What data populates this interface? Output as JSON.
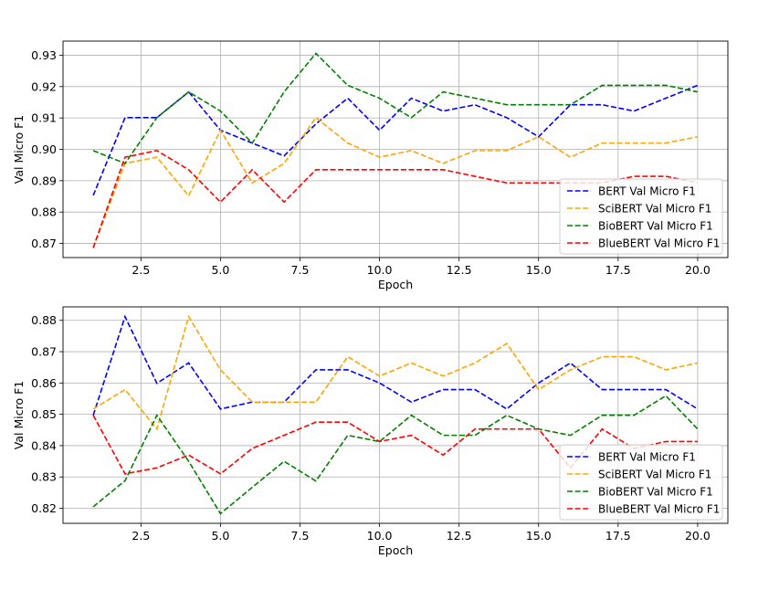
{
  "chart_data": [
    {
      "type": "line",
      "title": "",
      "xlabel": "Epoch",
      "ylabel": "Val Micro F1",
      "xlim": [
        0.05,
        20.95
      ],
      "ylim": [
        0.8655,
        0.9345
      ],
      "xticks": [
        2.5,
        5.0,
        7.5,
        10.0,
        12.5,
        15.0,
        17.5,
        20.0
      ],
      "xtick_labels": [
        "2.5",
        "5.0",
        "7.5",
        "10.0",
        "12.5",
        "15.0",
        "17.5",
        "20.0"
      ],
      "yticks": [
        0.87,
        0.88,
        0.89,
        0.9,
        0.91,
        0.92,
        0.93
      ],
      "ytick_labels": [
        "0.87",
        "0.88",
        "0.89",
        "0.90",
        "0.91",
        "0.92",
        "0.93"
      ],
      "grid": true,
      "legend_position": "lower-right",
      "x": [
        1,
        2,
        3,
        4,
        5,
        6,
        7,
        8,
        9,
        10,
        11,
        12,
        13,
        14,
        15,
        16,
        17,
        18,
        19,
        20
      ],
      "series": [
        {
          "name": "BERT Val Micro F1",
          "color": "#0000ff",
          "values": [
            0.8853,
            0.9101,
            0.9101,
            0.9183,
            0.9061,
            0.902,
            0.8979,
            0.9081,
            0.9163,
            0.9061,
            0.9163,
            0.9122,
            0.9142,
            0.9101,
            0.904,
            0.9142,
            0.9142,
            0.9122,
            0.9163,
            0.9204
          ]
        },
        {
          "name": "SciBERT Val Micro F1",
          "color": "#ffa500",
          "values": [
            0.8686,
            0.8955,
            0.8975,
            0.8852,
            0.9061,
            0.8893,
            0.8955,
            0.9101,
            0.902,
            0.8975,
            0.8996,
            0.8955,
            0.8996,
            0.8996,
            0.904,
            0.8975,
            0.902,
            0.902,
            0.902,
            0.904
          ]
        },
        {
          "name": "BioBERT Val Micro F1",
          "color": "#008000",
          "values": [
            0.8996,
            0.8955,
            0.9101,
            0.9183,
            0.9122,
            0.902,
            0.9183,
            0.9306,
            0.9204,
            0.9163,
            0.9101,
            0.9183,
            0.9163,
            0.9142,
            0.9142,
            0.9142,
            0.9204,
            0.9204,
            0.9204,
            0.9183
          ]
        },
        {
          "name": "BlueBERT Val Micro F1",
          "color": "#ff0000",
          "values": [
            0.8686,
            0.8975,
            0.8996,
            0.8935,
            0.8832,
            0.8935,
            0.8832,
            0.8935,
            0.8935,
            0.8935,
            0.8935,
            0.8935,
            0.8914,
            0.8893,
            0.8893,
            0.8893,
            0.8893,
            0.8914,
            0.8914,
            0.8893
          ]
        }
      ]
    },
    {
      "type": "line",
      "title": "",
      "xlabel": "Epoch",
      "ylabel": "Val Micro F1",
      "xlim": [
        0.05,
        20.95
      ],
      "ylim": [
        0.8152,
        0.8843
      ],
      "xticks": [
        2.5,
        5.0,
        7.5,
        10.0,
        12.5,
        15.0,
        17.5,
        20.0
      ],
      "xtick_labels": [
        "2.5",
        "5.0",
        "7.5",
        "10.0",
        "12.5",
        "15.0",
        "17.5",
        "20.0"
      ],
      "yticks": [
        0.82,
        0.83,
        0.84,
        0.85,
        0.86,
        0.87,
        0.88
      ],
      "ytick_labels": [
        "0.82",
        "0.83",
        "0.84",
        "0.85",
        "0.86",
        "0.87",
        "0.88"
      ],
      "grid": true,
      "legend_position": "lower-right",
      "x": [
        1,
        2,
        3,
        4,
        5,
        6,
        7,
        8,
        9,
        10,
        11,
        12,
        13,
        14,
        15,
        16,
        17,
        18,
        19,
        20
      ],
      "series": [
        {
          "name": "BERT Val Micro F1",
          "color": "#0000ff",
          "values": [
            0.8497,
            0.8812,
            0.8599,
            0.8664,
            0.8517,
            0.8539,
            0.8539,
            0.8642,
            0.8642,
            0.86,
            0.8539,
            0.8579,
            0.8579,
            0.8517,
            0.86,
            0.8664,
            0.8579,
            0.8579,
            0.8579,
            0.8517
          ]
        },
        {
          "name": "SciBERT Val Micro F1",
          "color": "#ffa500",
          "values": [
            0.8517,
            0.8579,
            0.8453,
            0.8812,
            0.8642,
            0.8539,
            0.8539,
            0.8539,
            0.8684,
            0.8622,
            0.8664,
            0.8622,
            0.8664,
            0.8726,
            0.8579,
            0.8642,
            0.8684,
            0.8684,
            0.8642,
            0.8664
          ]
        },
        {
          "name": "BioBERT Val Micro F1",
          "color": "#008000",
          "values": [
            0.8205,
            0.8288,
            0.8497,
            0.835,
            0.8183,
            0.8267,
            0.835,
            0.8287,
            0.8433,
            0.8413,
            0.8497,
            0.8433,
            0.8433,
            0.8497,
            0.8453,
            0.8433,
            0.8497,
            0.8497,
            0.8559,
            0.8453
          ]
        },
        {
          "name": "BlueBERT Val Micro F1",
          "color": "#ff0000",
          "values": [
            0.8497,
            0.831,
            0.8329,
            0.837,
            0.831,
            0.8391,
            0.8433,
            0.8475,
            0.8475,
            0.8413,
            0.8433,
            0.837,
            0.8453,
            0.8453,
            0.8453,
            0.8329,
            0.8453,
            0.8391,
            0.8413,
            0.8413
          ]
        }
      ]
    }
  ]
}
